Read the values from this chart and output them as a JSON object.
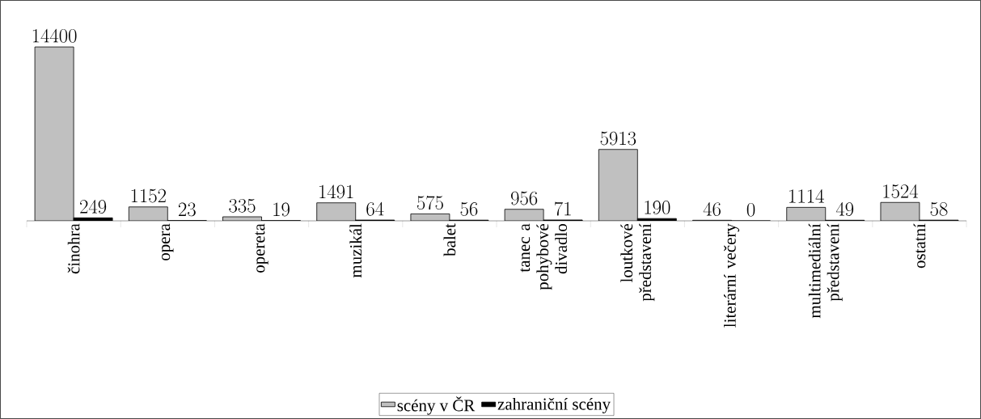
{
  "chart_data": {
    "type": "bar",
    "categories": [
      "činohra",
      "opera",
      "opereta",
      "muzikál",
      "balet",
      "tanec a pohybové divadlo",
      "loutkové představení",
      "literární večery",
      "multimediální představení",
      "ostatní"
    ],
    "series": [
      {
        "name": "scény v ČR",
        "color": "#c0c0c0",
        "values": [
          14400,
          1152,
          335,
          1491,
          575,
          956,
          5913,
          46,
          1114,
          1524
        ]
      },
      {
        "name": "zahraniční scény",
        "color": "#000000",
        "values": [
          249,
          23,
          19,
          64,
          56,
          71,
          190,
          0,
          49,
          58
        ]
      }
    ],
    "data_labels": true,
    "legend": "bottom"
  }
}
